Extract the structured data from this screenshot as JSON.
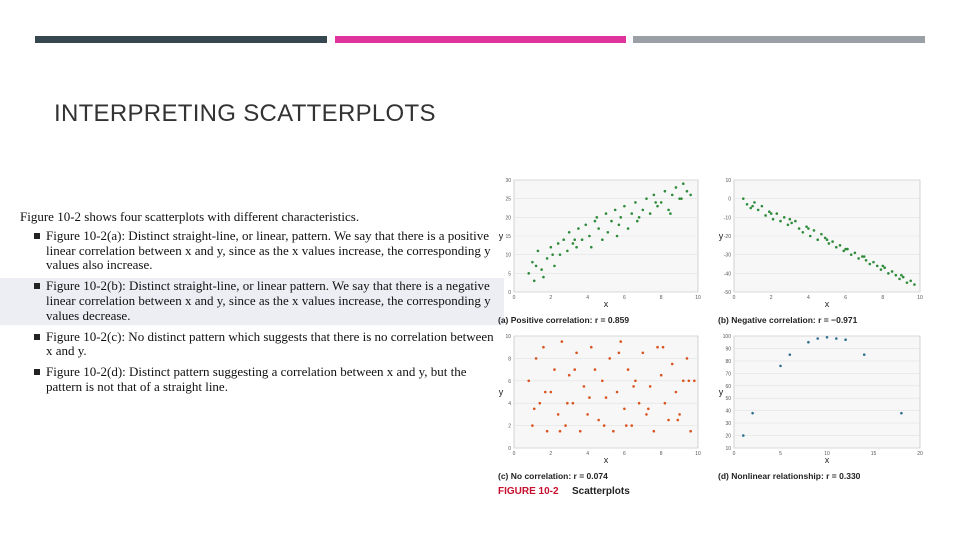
{
  "header": {
    "bars": [
      {
        "color": "#37474f"
      },
      {
        "color": "#e0339d"
      },
      {
        "color": "#9aa0a6"
      }
    ],
    "title": "INTERPRETING SCATTERPLOTS"
  },
  "text": {
    "lead": "Figure 10-2 shows four scatterplots with different characteristics.",
    "bullets": [
      "Figure 10-2(a): Distinct straight-line, or linear, pattern. We say that there is a positive linear correlation between x and y, since as the x values increase, the corresponding y values also increase.",
      "Figure 10-2(b): Distinct straight-line, or linear pattern. We say that there is a negative linear correlation between x and y, since as the x values increase, the corresponding y values decrease.",
      "Figure 10-2(c): No distinct pattern which suggests that there is no correlation between x and y.",
      "Figure 10-2(d): Distinct pattern suggesting a correlation between x and y, but the pattern is not that of a straight line."
    ]
  },
  "figure_caption": {
    "label": "FIGURE 10-2",
    "text": "Scatterplots"
  },
  "chart_data": [
    {
      "type": "scatter",
      "caption": "(a) Positive correlation: r = 0.859",
      "xlabel": "x",
      "ylabel": "y",
      "xlim": [
        0,
        10
      ],
      "ylim": [
        0,
        30
      ],
      "xticks": [
        0,
        2,
        4,
        6,
        8,
        10
      ],
      "yticks": [
        0,
        5,
        10,
        15,
        20,
        25,
        30
      ],
      "color": "#2e8b3a",
      "x": [
        0.8,
        1.0,
        1.1,
        1.3,
        1.5,
        1.6,
        1.8,
        2.0,
        2.2,
        2.4,
        2.5,
        2.7,
        2.9,
        3.0,
        3.2,
        3.4,
        3.5,
        3.7,
        3.9,
        4.1,
        4.2,
        4.4,
        4.6,
        4.8,
        5.0,
        5.1,
        5.3,
        5.5,
        5.7,
        5.8,
        6.0,
        6.2,
        6.4,
        6.6,
        6.8,
        7.0,
        7.2,
        7.4,
        7.6,
        7.8,
        8.0,
        8.2,
        8.4,
        8.6,
        8.8,
        9.0,
        9.2,
        9.4,
        9.6,
        1.2,
        2.1,
        3.3,
        4.5,
        5.6,
        6.7,
        7.7,
        8.5,
        9.1
      ],
      "y": [
        5,
        8,
        3,
        11,
        6,
        4,
        9,
        12,
        7,
        13,
        10,
        14,
        11,
        16,
        13,
        12,
        17,
        14,
        18,
        15,
        12,
        19,
        17,
        14,
        21,
        16,
        19,
        22,
        18,
        20,
        23,
        17,
        21,
        24,
        20,
        22,
        25,
        21,
        26,
        23,
        24,
        27,
        22,
        26,
        28,
        25,
        29,
        27,
        26,
        7,
        10,
        14,
        20,
        15,
        19,
        24,
        21,
        25
      ]
    },
    {
      "type": "scatter",
      "caption": "(b) Negative correlation: r = −0.971",
      "xlabel": "x",
      "ylabel": "y",
      "xlim": [
        0,
        10
      ],
      "ylim": [
        -50,
        10
      ],
      "xticks": [
        0,
        2,
        4,
        6,
        8,
        10
      ],
      "yticks": [
        -50,
        -40,
        -30,
        -20,
        -10,
        0,
        10
      ],
      "color": "#2e8b3a",
      "x": [
        0.5,
        0.7,
        0.9,
        1.1,
        1.3,
        1.5,
        1.7,
        1.9,
        2.1,
        2.3,
        2.5,
        2.7,
        2.9,
        3.1,
        3.3,
        3.5,
        3.7,
        3.9,
        4.1,
        4.3,
        4.5,
        4.7,
        4.9,
        5.1,
        5.3,
        5.5,
        5.7,
        5.9,
        6.1,
        6.3,
        6.5,
        6.7,
        6.9,
        7.1,
        7.3,
        7.5,
        7.7,
        7.9,
        8.1,
        8.3,
        8.5,
        8.7,
        8.9,
        9.1,
        9.3,
        9.5,
        9.7,
        1.0,
        2.0,
        3.0,
        4.0,
        5.0,
        6.0,
        7.0,
        8.0,
        9.0
      ],
      "y": [
        0,
        -3,
        -5,
        -2,
        -6,
        -4,
        -9,
        -7,
        -11,
        -8,
        -12,
        -10,
        -14,
        -13,
        -12,
        -16,
        -18,
        -15,
        -20,
        -17,
        -22,
        -19,
        -21,
        -24,
        -23,
        -26,
        -25,
        -28,
        -27,
        -30,
        -29,
        -32,
        -31,
        -33,
        -35,
        -34,
        -36,
        -38,
        -37,
        -40,
        -39,
        -41,
        -43,
        -42,
        -45,
        -44,
        -46,
        -4,
        -8,
        -11,
        -16,
        -22,
        -27,
        -31,
        -36,
        -41
      ]
    },
    {
      "type": "scatter",
      "caption": "(c) No correlation: r = 0.074",
      "xlabel": "x",
      "ylabel": "y",
      "xlim": [
        0,
        10
      ],
      "ylim": [
        0,
        10
      ],
      "xticks": [
        0,
        2,
        4,
        6,
        8,
        10
      ],
      "yticks": [
        0,
        2,
        4,
        6,
        8,
        10
      ],
      "color": "#d9531e",
      "x": [
        0.8,
        1.0,
        1.2,
        1.4,
        1.6,
        1.8,
        2.0,
        2.2,
        2.4,
        2.6,
        2.8,
        3.0,
        3.2,
        3.4,
        3.6,
        3.8,
        4.0,
        4.2,
        4.4,
        4.6,
        4.8,
        5.0,
        5.2,
        5.4,
        5.6,
        5.8,
        6.0,
        6.2,
        6.4,
        6.6,
        6.8,
        7.0,
        7.2,
        7.4,
        7.6,
        7.8,
        8.0,
        8.2,
        8.4,
        8.6,
        8.8,
        9.0,
        9.2,
        9.4,
        9.6,
        9.8,
        1.1,
        1.7,
        2.5,
        3.3,
        4.1,
        4.9,
        5.7,
        6.5,
        7.3,
        8.1,
        8.9,
        9.5,
        2.9,
        6.1
      ],
      "y": [
        6,
        2,
        8,
        4,
        9,
        1.5,
        5,
        7,
        3,
        9.5,
        2,
        6.5,
        4,
        8.5,
        1.5,
        5.5,
        3,
        9,
        7,
        2.5,
        6,
        4.5,
        8,
        1.5,
        5,
        9.5,
        3.5,
        7,
        2,
        6,
        4,
        8.5,
        3,
        5.5,
        1.5,
        9,
        6.5,
        4,
        2.5,
        7.5,
        5,
        3,
        6,
        8,
        1.5,
        6,
        3.5,
        5,
        1.5,
        7,
        4.5,
        2,
        8.5,
        5.5,
        3.5,
        9,
        2.5,
        6,
        4,
        2
      ]
    },
    {
      "type": "scatter",
      "caption": "(d) Nonlinear relationship: r = 0.330",
      "xlabel": "x",
      "ylabel": "y",
      "xlim": [
        0,
        20
      ],
      "ylim": [
        10,
        100
      ],
      "xticks": [
        0,
        5,
        10,
        15,
        20
      ],
      "yticks": [
        10,
        20,
        30,
        40,
        50,
        60,
        70,
        80,
        90,
        100
      ],
      "color": "#2e6f8e",
      "x": [
        1,
        2,
        5,
        6,
        8,
        9,
        10,
        11,
        12,
        14,
        18
      ],
      "y": [
        20,
        38,
        76,
        85,
        95,
        98,
        99,
        98,
        97,
        85,
        38
      ]
    }
  ]
}
